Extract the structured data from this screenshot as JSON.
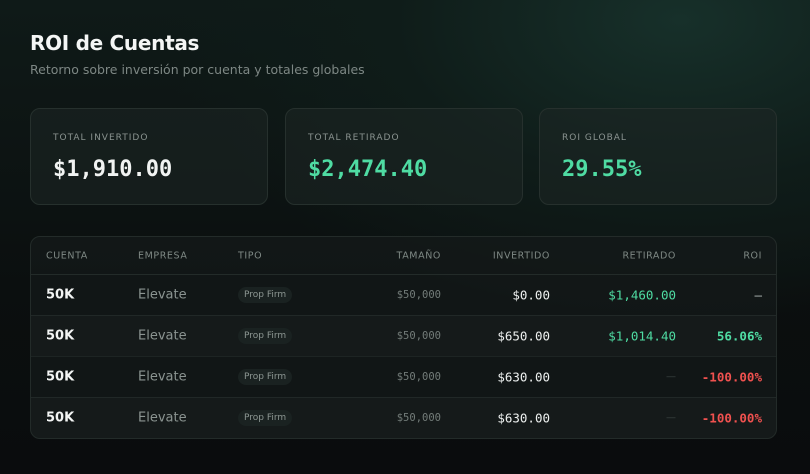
{
  "header": {
    "title": "ROI de Cuentas",
    "subtitle": "Retorno sobre inversión por cuenta y totales globales"
  },
  "stats": [
    {
      "label": "TOTAL INVERTIDO",
      "value": "$1,910.00"
    },
    {
      "label": "TOTAL RETIRADO",
      "value": "$2,474.40"
    },
    {
      "label": "ROI GLOBAL",
      "value": "29.55%"
    }
  ],
  "table": {
    "columns": [
      "CUENTA",
      "EMPRESA",
      "TIPO",
      "TAMAÑO",
      "INVERTIDO",
      "RETIRADO",
      "ROI"
    ],
    "rows": [
      [
        "50K",
        "Elevate",
        "Prop Firm",
        "$50,000",
        "$0.00",
        "$1,460.00",
        "—"
      ],
      [
        "50K",
        "Elevate",
        "Prop Firm",
        "$50,000",
        "$650.00",
        "$1,014.40",
        "56.06%"
      ],
      [
        "50K",
        "Elevate",
        "Prop Firm",
        "$50,000",
        "$630.00",
        "—",
        "-100.00%"
      ],
      [
        "50K",
        "Elevate",
        "Prop Firm",
        "$50,000",
        "$630.00",
        "—",
        "-100.00%"
      ]
    ]
  }
}
